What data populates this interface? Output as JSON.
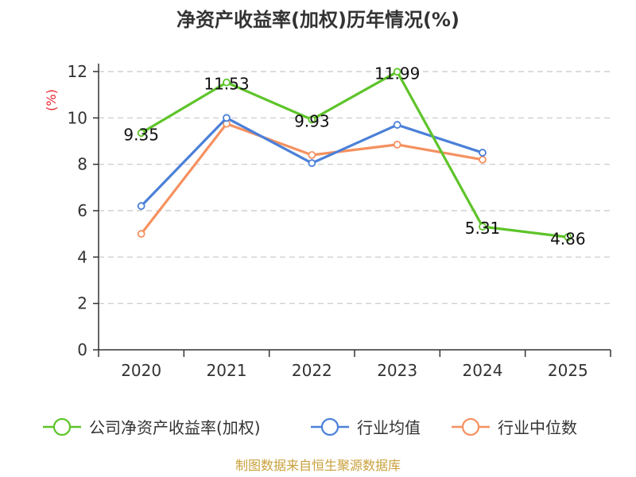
{
  "chart_data": {
    "type": "line",
    "title": "净资产收益率(加权)历年情况(%)",
    "ylabel": "(%)",
    "xlabel": "",
    "ylim": [
      0,
      12
    ],
    "yticks": [
      0,
      2,
      4,
      6,
      8,
      10,
      12
    ],
    "categories": [
      "2020",
      "2021",
      "2022",
      "2023",
      "2024",
      "2025"
    ],
    "grid": true,
    "legend_position": "bottom",
    "series": [
      {
        "name": "公司净资产收益率(加权)",
        "color": "#5ec42a",
        "values": [
          9.35,
          11.53,
          9.93,
          11.99,
          5.31,
          4.86
        ],
        "labels": [
          "9.35",
          "11.53",
          "9.93",
          "11.99",
          "5.31",
          "4.86"
        ],
        "show_labels": true
      },
      {
        "name": "行业均值",
        "color": "#4b80d8",
        "values": [
          6.2,
          10.0,
          8.05,
          9.7,
          8.5,
          null
        ],
        "show_labels": false
      },
      {
        "name": "行业中位数",
        "color": "#f59160",
        "values": [
          5.0,
          9.75,
          8.4,
          8.85,
          8.2,
          null
        ],
        "show_labels": false
      }
    ],
    "source": "制图数据来自恒生聚源数据库"
  }
}
